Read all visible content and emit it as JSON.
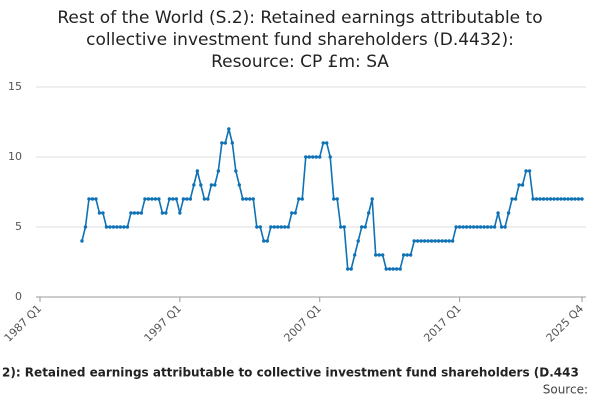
{
  "chart_data": {
    "type": "line",
    "title": [
      "Rest of the World (S.2): Retained earnings attributable to",
      "collective investment fund shareholders (D.4432):",
      "Resource: CP £m: SA"
    ],
    "x": [
      "1990 Q1",
      "1990 Q2",
      "1990 Q3",
      "1990 Q4",
      "1991 Q1",
      "1991 Q2",
      "1991 Q3",
      "1991 Q4",
      "1992 Q1",
      "1992 Q2",
      "1992 Q3",
      "1992 Q4",
      "1993 Q1",
      "1993 Q2",
      "1993 Q3",
      "1993 Q4",
      "1994 Q1",
      "1994 Q2",
      "1994 Q3",
      "1994 Q4",
      "1995 Q1",
      "1995 Q2",
      "1995 Q3",
      "1995 Q4",
      "1996 Q1",
      "1996 Q2",
      "1996 Q3",
      "1996 Q4",
      "1997 Q1",
      "1997 Q2",
      "1997 Q3",
      "1997 Q4",
      "1998 Q1",
      "1998 Q2",
      "1998 Q3",
      "1998 Q4",
      "1999 Q1",
      "1999 Q2",
      "1999 Q3",
      "1999 Q4",
      "2000 Q1",
      "2000 Q2",
      "2000 Q3",
      "2000 Q4",
      "2001 Q1",
      "2001 Q2",
      "2001 Q3",
      "2001 Q4",
      "2002 Q1",
      "2002 Q2",
      "2002 Q3",
      "2002 Q4",
      "2003 Q1",
      "2003 Q2",
      "2003 Q3",
      "2003 Q4",
      "2004 Q1",
      "2004 Q2",
      "2004 Q3",
      "2004 Q4",
      "2005 Q1",
      "2005 Q2",
      "2005 Q3",
      "2005 Q4",
      "2006 Q1",
      "2006 Q2",
      "2006 Q3",
      "2006 Q4",
      "2007 Q1",
      "2007 Q2",
      "2007 Q3",
      "2007 Q4",
      "2008 Q1",
      "2008 Q2",
      "2008 Q3",
      "2008 Q4",
      "2009 Q1",
      "2009 Q2",
      "2009 Q3",
      "2009 Q4",
      "2010 Q1",
      "2010 Q2",
      "2010 Q3",
      "2010 Q4",
      "2011 Q1",
      "2011 Q2",
      "2011 Q3",
      "2011 Q4",
      "2012 Q1",
      "2012 Q2",
      "2012 Q3",
      "2012 Q4",
      "2013 Q1",
      "2013 Q2",
      "2013 Q3",
      "2013 Q4",
      "2014 Q1",
      "2014 Q2",
      "2014 Q3",
      "2014 Q4",
      "2015 Q1",
      "2015 Q2",
      "2015 Q3",
      "2015 Q4",
      "2016 Q1",
      "2016 Q2",
      "2016 Q3",
      "2016 Q4",
      "2017 Q1",
      "2017 Q2",
      "2017 Q3",
      "2017 Q4",
      "2018 Q1",
      "2018 Q2",
      "2018 Q3",
      "2018 Q4",
      "2019 Q1",
      "2019 Q2",
      "2019 Q3",
      "2019 Q4",
      "2020 Q1",
      "2020 Q2",
      "2020 Q3",
      "2020 Q4",
      "2021 Q1",
      "2021 Q2",
      "2021 Q3",
      "2021 Q4",
      "2022 Q1",
      "2022 Q2",
      "2022 Q3",
      "2022 Q4",
      "2023 Q1",
      "2023 Q2",
      "2023 Q3",
      "2023 Q4",
      "2024 Q1",
      "2024 Q2",
      "2024 Q3",
      "2024 Q4",
      "2025 Q1",
      "2025 Q2",
      "2025 Q3",
      "2025 Q4"
    ],
    "series": [
      {
        "name": "2): Retained earnings attributable to collective investment fund shareholders (D.443",
        "color": "#0f72b5",
        "values": [
          4,
          5,
          7,
          7,
          7,
          6,
          6,
          5,
          5,
          5,
          5,
          5,
          5,
          5,
          6,
          6,
          6,
          6,
          7,
          7,
          7,
          7,
          7,
          6,
          6,
          7,
          7,
          7,
          6,
          7,
          7,
          7,
          8,
          9,
          8,
          7,
          7,
          8,
          8,
          9,
          11,
          11,
          12,
          11,
          9,
          8,
          7,
          7,
          7,
          7,
          5,
          5,
          4,
          4,
          5,
          5,
          5,
          5,
          5,
          5,
          6,
          6,
          7,
          7,
          10,
          10,
          10,
          10,
          10,
          11,
          11,
          10,
          7,
          7,
          5,
          5,
          2,
          2,
          3,
          4,
          5,
          5,
          6,
          7,
          3,
          3,
          3,
          2,
          2,
          2,
          2,
          2,
          3,
          3,
          3,
          4,
          4,
          4,
          4,
          4,
          4,
          4,
          4,
          4,
          4,
          4,
          4,
          5,
          5,
          5,
          5,
          5,
          5,
          5,
          5,
          5,
          5,
          5,
          5,
          6,
          5,
          5,
          6,
          7,
          7,
          8,
          8,
          9,
          9,
          7,
          7,
          7,
          7,
          7,
          7,
          7,
          7,
          7,
          7,
          7,
          7,
          7,
          7,
          7
        ]
      }
    ],
    "xlim": [
      "1987 Q1",
      "2025 Q4"
    ],
    "xticks": [
      "1987 Q1",
      "1997 Q1",
      "2007 Q1",
      "2017 Q1",
      "2025 Q4"
    ],
    "ylim": [
      0,
      15
    ],
    "yticks": [
      0,
      5,
      10,
      15
    ],
    "grid": true,
    "source": "Source:"
  }
}
